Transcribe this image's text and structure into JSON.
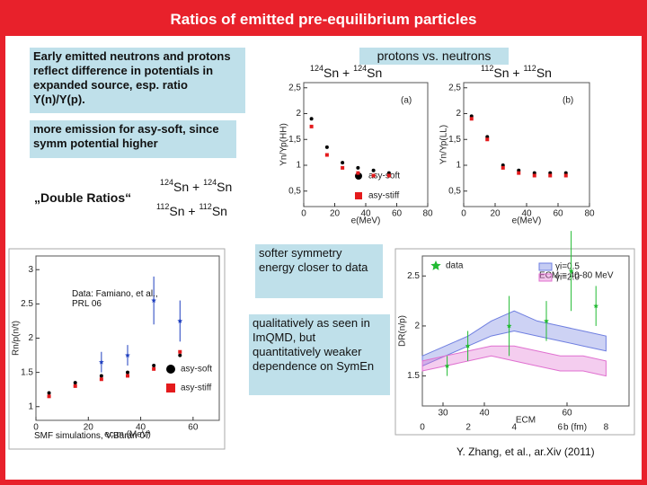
{
  "title": "Ratios of emitted pre-equilibrium particles",
  "notes": {
    "intro": "Early emitted neutrons and protons reflect difference in potentials in expanded source, esp. ratio Y(n)/Y(p).",
    "emission": "more emission for asy-soft, since symm potential higher",
    "double_ratios": "„Double Ratios“",
    "comparison": "protons vs. neutrons",
    "softer": "softer symmetry energy closer to data",
    "qualitative": "qualitatively as seen in ImQMD, but quantitatively weaker dependence on SymEn",
    "famiano": "Data: Famiano, et al., PRL 06",
    "smf": "SMF simulations, V.Baran 07",
    "zhang": "Y. Zhang, et al., ar.Xiv (2011)"
  },
  "reactions": {
    "sn124": [
      "124",
      "Sn + ",
      "124",
      "Sn"
    ],
    "sn112": [
      "112",
      "Sn + ",
      "112",
      "Sn"
    ]
  },
  "chart_data": [
    {
      "type": "scatter",
      "panel": "(a)",
      "xlabel": "e(MeV)",
      "ylabel": "Yn/Yp(HH)",
      "xlim": [
        0,
        80
      ],
      "ylim": [
        0.2,
        2.6
      ],
      "xticks": [
        0,
        20,
        40,
        60,
        80
      ],
      "yticks": [
        {
          "value": 0.5,
          "label": "0,5"
        },
        1,
        {
          "value": 1.5,
          "label": "1,5"
        },
        2,
        {
          "value": 2.5,
          "label": "2,5"
        }
      ],
      "series": [
        {
          "name": "asy-soft",
          "color": "#000000",
          "marker": "circle",
          "x": [
            5,
            15,
            25,
            35,
            45,
            55
          ],
          "values": [
            1.9,
            1.35,
            1.05,
            0.95,
            0.9,
            0.85
          ]
        },
        {
          "name": "asy-stiff",
          "color": "#e41a1c",
          "marker": "square",
          "x": [
            5,
            15,
            25,
            35,
            45,
            55
          ],
          "values": [
            1.75,
            1.2,
            0.95,
            0.85,
            0.8,
            0.8
          ]
        }
      ]
    },
    {
      "type": "scatter",
      "panel": "(b)",
      "xlabel": "e(MeV)",
      "ylabel": "Yn/Yp(LL)",
      "xlim": [
        0,
        80
      ],
      "ylim": [
        0.2,
        2.6
      ],
      "xticks": [
        0,
        20,
        40,
        60,
        80
      ],
      "yticks": [
        {
          "value": 0.5,
          "label": "0,5"
        },
        1,
        {
          "value": 1.5,
          "label": "1,5"
        },
        2,
        {
          "value": 2.5,
          "label": "2,5"
        }
      ],
      "series": [
        {
          "color": "#000000",
          "marker": "circle",
          "x": [
            5,
            15,
            25,
            35,
            45,
            55,
            65
          ],
          "values": [
            1.95,
            1.55,
            1.0,
            0.9,
            0.85,
            0.85,
            0.85
          ]
        },
        {
          "color": "#e41a1c",
          "marker": "square",
          "x": [
            5,
            15,
            25,
            35,
            45,
            55,
            65
          ],
          "values": [
            1.9,
            1.5,
            0.95,
            0.85,
            0.8,
            0.8,
            0.8
          ]
        }
      ]
    },
    {
      "type": "scatter",
      "xlabel": "ec.m.(MeV)",
      "ylabel": "Rn/p(n/t)",
      "xlim": [
        0,
        70
      ],
      "ylim": [
        0.8,
        3.2
      ],
      "xticks": [
        0,
        20,
        40,
        60
      ],
      "yticks": [
        1,
        1.5,
        2,
        2.5,
        3
      ],
      "series": [
        {
          "color": "#1f3fbf",
          "marker": "star",
          "x": [
            25,
            35,
            45,
            55
          ],
          "values": [
            1.65,
            1.75,
            2.55,
            2.25
          ],
          "err": [
            0.15,
            0.15,
            0.35,
            0.3
          ]
        },
        {
          "name": "asy-soft",
          "color": "#000000",
          "marker": "circle",
          "x": [
            5,
            15,
            25,
            35,
            45,
            55
          ],
          "values": [
            1.2,
            1.35,
            1.45,
            1.5,
            1.6,
            1.75
          ]
        },
        {
          "name": "asy-stiff",
          "color": "#e41a1c",
          "marker": "square",
          "x": [
            5,
            15,
            25,
            35,
            45,
            55
          ],
          "values": [
            1.15,
            1.3,
            1.4,
            1.45,
            1.55,
            1.8
          ]
        }
      ]
    },
    {
      "type": "scatter",
      "xlabel": "ECM",
      "ylabel": "DR(n/p)",
      "x2label": "b (fm)",
      "note": "ECM = 40-80 MeV",
      "xlim": [
        25,
        75
      ],
      "ylim": [
        1.2,
        2.7
      ],
      "xticks": [
        30,
        40,
        60
      ],
      "yticks": [
        1.5,
        2,
        2.5
      ],
      "x2lim": [
        0,
        9
      ],
      "x2ticks": [
        0,
        2,
        4,
        6,
        8
      ],
      "series": [
        {
          "name": "γi=0.5",
          "color": "#6f7fe0",
          "kind": "band",
          "axis": "x2",
          "x": [
            0,
            1,
            2,
            3,
            4,
            5,
            6,
            7,
            8
          ],
          "low": [
            1.6,
            1.7,
            1.8,
            1.9,
            1.95,
            1.9,
            1.85,
            1.8,
            1.75
          ],
          "high": [
            1.7,
            1.8,
            1.9,
            2.05,
            2.15,
            2.05,
            2.0,
            1.95,
            1.9
          ]
        },
        {
          "name": "γi=2.0",
          "color": "#e070d0",
          "kind": "band",
          "axis": "x2",
          "x": [
            0,
            1,
            2,
            3,
            4,
            5,
            6,
            7,
            8
          ],
          "low": [
            1.55,
            1.6,
            1.65,
            1.7,
            1.65,
            1.6,
            1.55,
            1.55,
            1.5
          ],
          "high": [
            1.65,
            1.7,
            1.75,
            1.8,
            1.8,
            1.75,
            1.7,
            1.7,
            1.65
          ]
        },
        {
          "name": "data",
          "color": "#22bb33",
          "marker": "star",
          "x": [
            31,
            36,
            46,
            55,
            61,
            67
          ],
          "values": [
            1.6,
            1.8,
            2.0,
            2.05,
            2.55,
            2.2
          ],
          "err": [
            0.1,
            0.15,
            0.3,
            0.2,
            0.4,
            0.2
          ]
        }
      ]
    }
  ]
}
